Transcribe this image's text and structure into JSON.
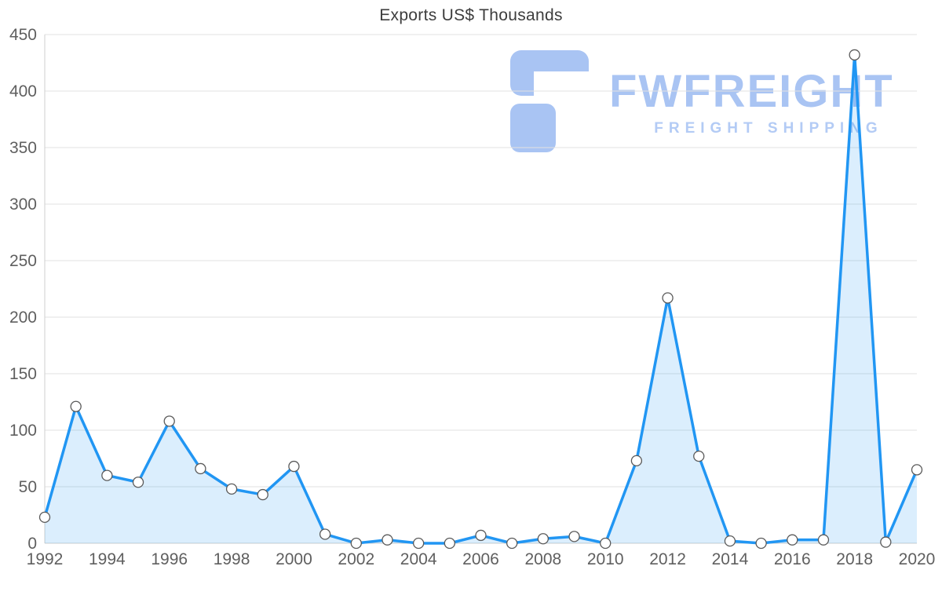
{
  "chart_data": {
    "type": "area",
    "title": "Exports US$ Thousands",
    "x": [
      1992,
      1993,
      1994,
      1995,
      1996,
      1997,
      1998,
      1999,
      2000,
      2001,
      2002,
      2003,
      2004,
      2005,
      2006,
      2007,
      2008,
      2009,
      2010,
      2011,
      2012,
      2013,
      2014,
      2015,
      2016,
      2017,
      2018,
      2019,
      2020
    ],
    "values": [
      23,
      121,
      60,
      54,
      108,
      66,
      48,
      43,
      68,
      8,
      0,
      3,
      0,
      0,
      7,
      0,
      4,
      6,
      0,
      73,
      217,
      77,
      2,
      0,
      3,
      3,
      432,
      1,
      65
    ],
    "xlabel": "",
    "ylabel": "",
    "ylim": [
      0,
      450
    ],
    "ytick_step": 50,
    "xtick_step": 2,
    "grid": "horizontal",
    "legend": "none",
    "line_color": "#2196f3",
    "fill_color": "rgba(33,150,243,0.16)",
    "marker_fill": "#ffffff",
    "marker_stroke": "#5a5a5a",
    "grid_color": "#e2e2e2",
    "axis_line_color": "#cfcfcf",
    "tick_label_color": "#5f5f5f"
  },
  "watermark": {
    "text": "FWFREIGHT",
    "subtext": "FREIGHT SHIPPING",
    "color": "#a9c4f3"
  }
}
